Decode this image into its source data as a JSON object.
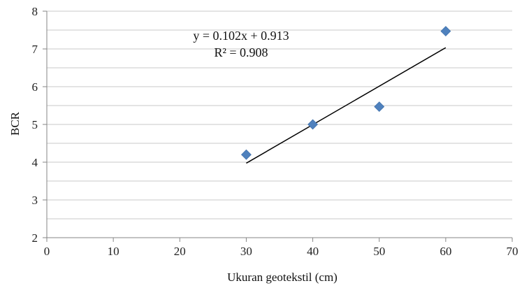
{
  "chart_data": {
    "type": "scatter",
    "xlabel": "Ukuran geotekstil (cm)",
    "ylabel": "BCR",
    "xlim": [
      0,
      70
    ],
    "ylim": [
      2,
      8
    ],
    "x_ticks": [
      "0",
      "10",
      "20",
      "30",
      "40",
      "50",
      "60",
      "70"
    ],
    "y_ticks": [
      "2",
      "3",
      "4",
      "5",
      "6",
      "7",
      "8"
    ],
    "grid": true,
    "series": [
      {
        "marker": "diamond",
        "color": "#4F81BD",
        "x": [
          30,
          40,
          50,
          60
        ],
        "y": [
          4.2,
          5.0,
          5.47,
          7.47
        ]
      }
    ],
    "trendline": {
      "type": "linear",
      "slope": 0.102,
      "intercept": 0.913,
      "x_range": [
        30,
        60
      ],
      "color": "#000000"
    },
    "annotations": [
      "y = 0.102x + 0.913",
      "R² = 0.908"
    ]
  }
}
